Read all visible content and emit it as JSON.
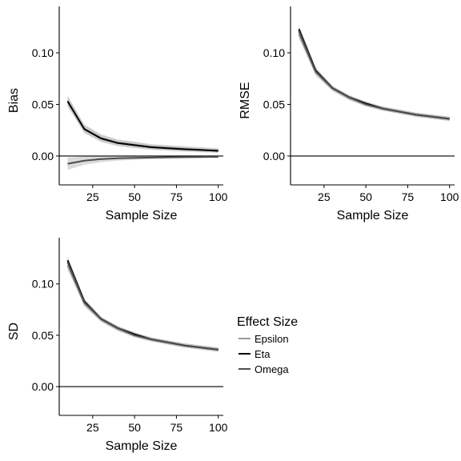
{
  "chart_data": [
    {
      "type": "line",
      "id": "bias",
      "title": "",
      "xlabel": "Sample Size",
      "ylabel": "Bias",
      "x": [
        10,
        20,
        30,
        40,
        50,
        60,
        70,
        80,
        90,
        100
      ],
      "xlim": [
        5,
        103
      ],
      "ylim": [
        -0.028,
        0.145
      ],
      "xticks": [
        25,
        50,
        75,
        100
      ],
      "yticks": [
        0.0,
        0.05,
        0.1
      ],
      "ytick_labels": [
        "0.00",
        "0.05",
        "0.10"
      ],
      "reference_line": 0,
      "series": [
        {
          "name": "Epsilon",
          "values": [
            0.0535,
            0.0265,
            0.0175,
            0.013,
            0.011,
            0.009,
            0.008,
            0.007,
            0.006,
            0.0055
          ],
          "lower": [
            0.0485,
            0.0225,
            0.014,
            0.01,
            0.008,
            0.0065,
            0.0055,
            0.0045,
            0.004,
            0.0035
          ],
          "upper": [
            0.0585,
            0.0305,
            0.021,
            0.016,
            0.014,
            0.0115,
            0.0105,
            0.0095,
            0.0085,
            0.0075
          ]
        },
        {
          "name": "Eta",
          "values": [
            0.053,
            0.026,
            0.017,
            0.0125,
            0.0105,
            0.0085,
            0.0075,
            0.0065,
            0.0058,
            0.005
          ],
          "lower": [
            0.048,
            0.022,
            0.0135,
            0.0095,
            0.0075,
            0.006,
            0.005,
            0.0042,
            0.0036,
            0.003
          ],
          "upper": [
            0.058,
            0.03,
            0.0205,
            0.0155,
            0.0135,
            0.011,
            0.01,
            0.0088,
            0.008,
            0.007
          ]
        },
        {
          "name": "Omega",
          "values": [
            -0.0075,
            -0.0045,
            -0.003,
            -0.0022,
            -0.0018,
            -0.0015,
            -0.0012,
            -0.001,
            -0.0009,
            -0.0008
          ],
          "lower": [
            -0.0135,
            -0.0085,
            -0.006,
            -0.0045,
            -0.0038,
            -0.0032,
            -0.0028,
            -0.0025,
            -0.0022,
            -0.002
          ],
          "upper": [
            -0.0015,
            -0.0005,
            0.0,
            0.0001,
            0.0002,
            0.0002,
            0.0003,
            0.0004,
            0.0004,
            0.0004
          ]
        }
      ]
    },
    {
      "type": "line",
      "id": "rmse",
      "title": "",
      "xlabel": "Sample Size",
      "ylabel": "RMSE",
      "x": [
        10,
        20,
        30,
        40,
        50,
        60,
        70,
        80,
        90,
        100
      ],
      "xlim": [
        5,
        103
      ],
      "ylim": [
        -0.028,
        0.145
      ],
      "xticks": [
        25,
        50,
        75,
        100
      ],
      "yticks": [
        0.0,
        0.05,
        0.1
      ],
      "ytick_labels": [
        "0.00",
        "0.05",
        "0.10"
      ],
      "reference_line": 0,
      "series": [
        {
          "name": "Epsilon",
          "values": [
            0.118,
            0.081,
            0.065,
            0.056,
            0.05,
            0.046,
            0.043,
            0.04,
            0.038,
            0.036
          ],
          "lower": [
            0.114,
            0.078,
            0.063,
            0.054,
            0.048,
            0.044,
            0.041,
            0.038,
            0.036,
            0.034
          ],
          "upper": [
            0.122,
            0.084,
            0.067,
            0.058,
            0.052,
            0.048,
            0.045,
            0.042,
            0.04,
            0.038
          ]
        },
        {
          "name": "Eta",
          "values": [
            0.123,
            0.083,
            0.066,
            0.057,
            0.051,
            0.046,
            0.043,
            0.04,
            0.038,
            0.036
          ],
          "lower": [
            0.119,
            0.08,
            0.064,
            0.055,
            0.049,
            0.044,
            0.041,
            0.038,
            0.036,
            0.034
          ],
          "upper": [
            0.127,
            0.086,
            0.068,
            0.059,
            0.053,
            0.048,
            0.045,
            0.042,
            0.04,
            0.038
          ]
        },
        {
          "name": "Omega",
          "values": [
            0.121,
            0.082,
            0.066,
            0.057,
            0.05,
            0.046,
            0.043,
            0.04,
            0.038,
            0.036
          ],
          "lower": [
            0.117,
            0.079,
            0.064,
            0.055,
            0.048,
            0.044,
            0.041,
            0.038,
            0.036,
            0.034
          ],
          "upper": [
            0.125,
            0.085,
            0.068,
            0.059,
            0.052,
            0.048,
            0.045,
            0.042,
            0.04,
            0.038
          ]
        }
      ]
    },
    {
      "type": "line",
      "id": "sd",
      "title": "",
      "xlabel": "Sample Size",
      "ylabel": "SD",
      "x": [
        10,
        20,
        30,
        40,
        50,
        60,
        70,
        80,
        90,
        100
      ],
      "xlim": [
        5,
        103
      ],
      "ylim": [
        -0.028,
        0.145
      ],
      "xticks": [
        25,
        50,
        75,
        100
      ],
      "yticks": [
        0.0,
        0.05,
        0.1
      ],
      "ytick_labels": [
        "0.00",
        "0.05",
        "0.10"
      ],
      "reference_line": 0,
      "series": [
        {
          "name": "Epsilon",
          "values": [
            0.118,
            0.081,
            0.065,
            0.056,
            0.05,
            0.046,
            0.043,
            0.04,
            0.038,
            0.036
          ],
          "lower": [
            0.114,
            0.078,
            0.063,
            0.054,
            0.048,
            0.044,
            0.041,
            0.038,
            0.036,
            0.034
          ],
          "upper": [
            0.122,
            0.084,
            0.067,
            0.058,
            0.052,
            0.048,
            0.045,
            0.042,
            0.04,
            0.038
          ]
        },
        {
          "name": "Eta",
          "values": [
            0.123,
            0.083,
            0.066,
            0.057,
            0.051,
            0.046,
            0.043,
            0.04,
            0.038,
            0.036
          ],
          "lower": [
            0.119,
            0.08,
            0.064,
            0.055,
            0.049,
            0.044,
            0.041,
            0.038,
            0.036,
            0.034
          ],
          "upper": [
            0.127,
            0.086,
            0.068,
            0.059,
            0.053,
            0.048,
            0.045,
            0.042,
            0.04,
            0.038
          ]
        },
        {
          "name": "Omega",
          "values": [
            0.121,
            0.082,
            0.066,
            0.057,
            0.05,
            0.046,
            0.043,
            0.04,
            0.038,
            0.036
          ],
          "lower": [
            0.117,
            0.079,
            0.064,
            0.055,
            0.048,
            0.044,
            0.041,
            0.038,
            0.036,
            0.034
          ],
          "upper": [
            0.125,
            0.085,
            0.068,
            0.059,
            0.052,
            0.048,
            0.045,
            0.042,
            0.04,
            0.038
          ]
        }
      ]
    }
  ],
  "legend": {
    "title": "Effect Size",
    "placement": "bottom-right",
    "items": [
      {
        "label": "Epsilon",
        "color": "#9a9a9a"
      },
      {
        "label": "Eta",
        "color": "#000000"
      },
      {
        "label": "Omega",
        "color": "#4d4d4d"
      }
    ]
  },
  "style": {
    "band_color": "#bdbdbd",
    "band_opacity": 0.55,
    "series_colors": {
      "Epsilon": "#9a9a9a",
      "Eta": "#000000",
      "Omega": "#4d4d4d"
    },
    "axis_color": "#000000"
  }
}
